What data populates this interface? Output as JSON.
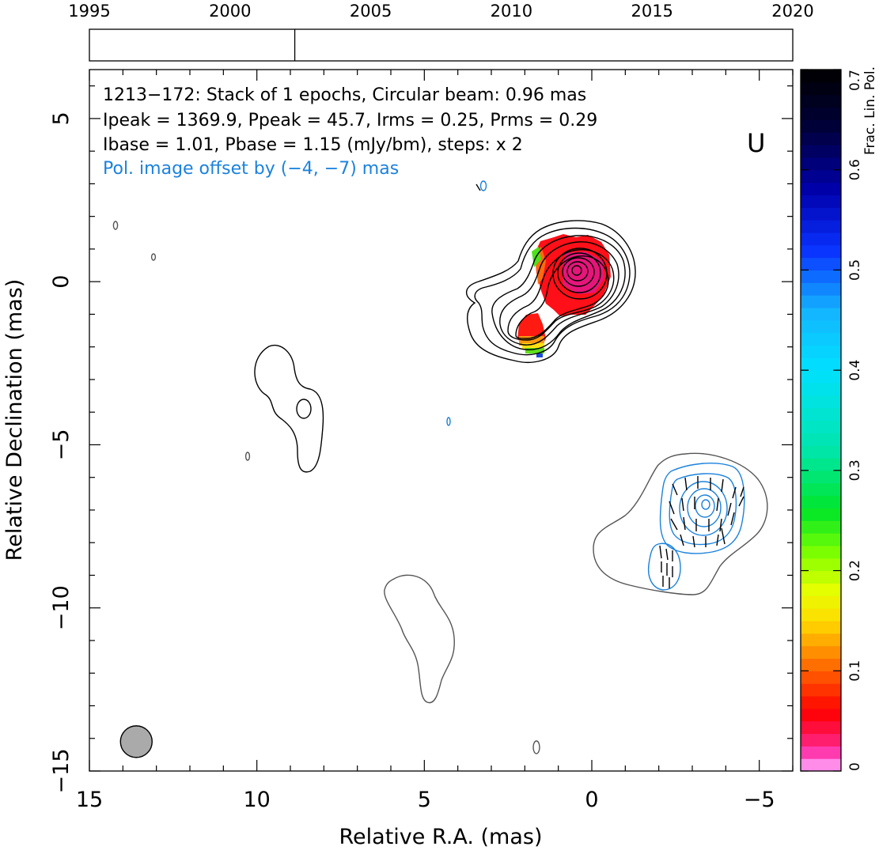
{
  "chart_data": {
    "type": "contour",
    "timeline": {
      "ticks": [
        "1995",
        "2000",
        "2005",
        "2010",
        "2015",
        "2020"
      ],
      "range": [
        1995,
        2020
      ],
      "epoch_marker": 2002.3
    },
    "annotation": {
      "line1": "1213−172: Stack of 1 epochs, Circular beam: 0.96 mas",
      "line2": "Ipeak = 1369.9, Ppeak = 45.7, Irms = 0.25, Prms = 0.29",
      "line3": "Ibase = 1.01, Pbase = 1.15 (mJy/bm), steps: x 2",
      "line4": "Pol. image offset by (−4, −7) mas",
      "band": "U"
    },
    "xlabel": "Relative R.A. (mas)",
    "ylabel": "Relative Declination (mas)",
    "xlim": [
      15,
      -6
    ],
    "ylim": [
      -15,
      6.5
    ],
    "x_ticks": [
      {
        "value": 15,
        "label": "15"
      },
      {
        "value": 10,
        "label": "10"
      },
      {
        "value": 5,
        "label": "5"
      },
      {
        "value": 0,
        "label": "0"
      },
      {
        "value": -5,
        "label": "−5"
      }
    ],
    "y_ticks": [
      {
        "value": 5,
        "label": "5"
      },
      {
        "value": 0,
        "label": "0"
      },
      {
        "value": -5,
        "label": "−5"
      },
      {
        "value": -10,
        "label": "−10"
      },
      {
        "value": -15,
        "label": "−15"
      }
    ],
    "colorbar": {
      "label": "Frac. Lin. Pol.",
      "range": [
        0,
        0.7
      ],
      "ticks": [
        {
          "value": 0,
          "label": "0"
        },
        {
          "value": 0.1,
          "label": "0.1"
        },
        {
          "value": 0.2,
          "label": "0.2"
        },
        {
          "value": 0.3,
          "label": "0.3"
        },
        {
          "value": 0.4,
          "label": "0.4"
        },
        {
          "value": 0.5,
          "label": "0.5"
        },
        {
          "value": 0.6,
          "label": "0.6"
        },
        {
          "value": 0.7,
          "label": "0.7"
        }
      ]
    },
    "beam": {
      "x": 13.6,
      "y": -14.1,
      "diameter": 0.96
    },
    "core_peak": {
      "x": 0.3,
      "y": 0.0
    },
    "polarized_offset": {
      "dx": -4,
      "dy": -7
    }
  },
  "colors": {
    "axes": "#000000",
    "intensity_contours": "#000000",
    "faint_contours": "#555555",
    "polarization_contours": "#1b82dc",
    "pol_text": "#1b82dc",
    "beam_fill": "#aaaaaa"
  }
}
